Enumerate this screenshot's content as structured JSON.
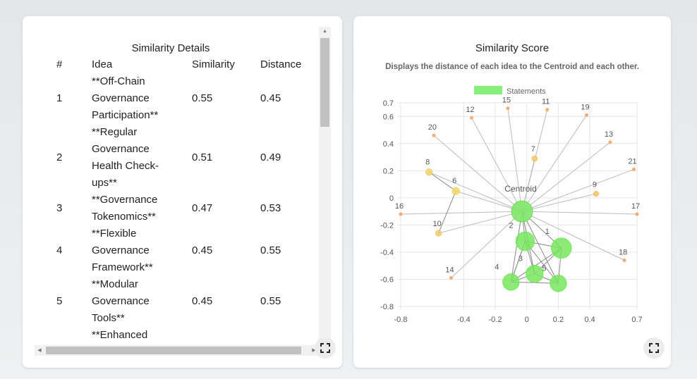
{
  "table": {
    "title": "Similarity Details",
    "columns": [
      "#",
      "Idea",
      "Similarity",
      "Distance"
    ],
    "rows": [
      {
        "num": "1",
        "idea": [
          "**Off-Chain",
          "Governance",
          "Participation**"
        ],
        "similarity": "0.55",
        "distance": "0.45"
      },
      {
        "num": "2",
        "idea": [
          "**Regular",
          "Governance",
          "Health Check-",
          "ups**"
        ],
        "similarity": "0.51",
        "distance": "0.49"
      },
      {
        "num": "3",
        "idea": [
          "**Governance",
          "Tokenomics**"
        ],
        "similarity": "0.47",
        "distance": "0.53"
      },
      {
        "num": "4",
        "idea": [
          "**Flexible",
          "Governance",
          "Framework**"
        ],
        "similarity": "0.45",
        "distance": "0.55"
      },
      {
        "num": "5",
        "idea": [
          "**Modular",
          "Governance",
          "Tools**"
        ],
        "similarity": "0.45",
        "distance": "0.55"
      },
      {
        "num": "",
        "idea": [
          "**Enhanced"
        ],
        "similarity": "",
        "distance": ""
      }
    ]
  },
  "chart_data": {
    "type": "scatter",
    "title": "Similarity Score",
    "subtitle": "Displays the distance of each idea to the Centroid and each other.",
    "legend": {
      "label": "Statements",
      "color": "#88f07a",
      "position": "top"
    },
    "xlim": [
      -0.8,
      0.7
    ],
    "ylim": [
      -0.8,
      0.7
    ],
    "x_ticks": [
      -0.8,
      -0.4,
      -0.2,
      0,
      0.2,
      0.4,
      0.7
    ],
    "x_tick_labels": [
      "-0.8",
      "-0.4",
      "-0.2",
      "0",
      "0.2",
      "0.4",
      "0.7"
    ],
    "y_ticks": [
      0.7,
      0.6,
      0.4,
      0.2,
      0,
      -0.2,
      -0.4,
      -0.6,
      -0.8
    ],
    "y_tick_labels": [
      "0.7",
      "0.6",
      "0.4",
      "0.2",
      "0",
      "-0.2",
      "-0.4",
      "-0.6",
      "-0.8"
    ],
    "grid": true,
    "centroid": {
      "label": "Centroid",
      "x": -0.03,
      "y": -0.1
    },
    "points": [
      {
        "label": "1",
        "x": 0.22,
        "y": -0.37,
        "similarity": 0.55
      },
      {
        "label": "2",
        "x": -0.01,
        "y": -0.32,
        "similarity": 0.51
      },
      {
        "label": "3",
        "x": 0.05,
        "y": -0.56,
        "similarity": 0.47
      },
      {
        "label": "4",
        "x": -0.1,
        "y": -0.62,
        "similarity": 0.45
      },
      {
        "label": "5",
        "x": 0.2,
        "y": -0.63,
        "similarity": 0.45
      },
      {
        "label": "6",
        "x": -0.45,
        "y": 0.05,
        "similarity": 0.2
      },
      {
        "label": "7",
        "x": 0.05,
        "y": 0.29,
        "similarity": 0.15
      },
      {
        "label": "8",
        "x": -0.62,
        "y": 0.19,
        "similarity": 0.18
      },
      {
        "label": "9",
        "x": 0.44,
        "y": 0.03,
        "similarity": 0.14
      },
      {
        "label": "10",
        "x": -0.56,
        "y": -0.26,
        "similarity": 0.16
      },
      {
        "label": "11",
        "x": 0.13,
        "y": 0.65,
        "similarity": 0.08
      },
      {
        "label": "12",
        "x": -0.35,
        "y": 0.59,
        "similarity": 0.06
      },
      {
        "label": "13",
        "x": 0.53,
        "y": 0.41,
        "similarity": 0.06
      },
      {
        "label": "14",
        "x": -0.48,
        "y": -0.59,
        "similarity": 0.06
      },
      {
        "label": "15",
        "x": -0.12,
        "y": 0.66,
        "similarity": 0.06
      },
      {
        "label": "16",
        "x": -0.8,
        "y": -0.12,
        "similarity": 0.04
      },
      {
        "label": "17",
        "x": 0.7,
        "y": -0.12,
        "similarity": 0.04
      },
      {
        "label": "18",
        "x": 0.62,
        "y": -0.46,
        "similarity": 0.04
      },
      {
        "label": "19",
        "x": 0.38,
        "y": 0.61,
        "similarity": 0.03
      },
      {
        "label": "20",
        "x": -0.59,
        "y": 0.46,
        "similarity": 0.02
      },
      {
        "label": "21",
        "x": 0.68,
        "y": 0.21,
        "similarity": 0.01
      }
    ],
    "links": [
      [
        1,
        2
      ],
      [
        1,
        3
      ],
      [
        1,
        4
      ],
      [
        1,
        5
      ],
      [
        2,
        3
      ],
      [
        2,
        4
      ],
      [
        2,
        5
      ],
      [
        3,
        4
      ],
      [
        3,
        5
      ],
      [
        4,
        5
      ],
      [
        8,
        6
      ],
      [
        6,
        10
      ],
      [
        4,
        2
      ]
    ]
  }
}
